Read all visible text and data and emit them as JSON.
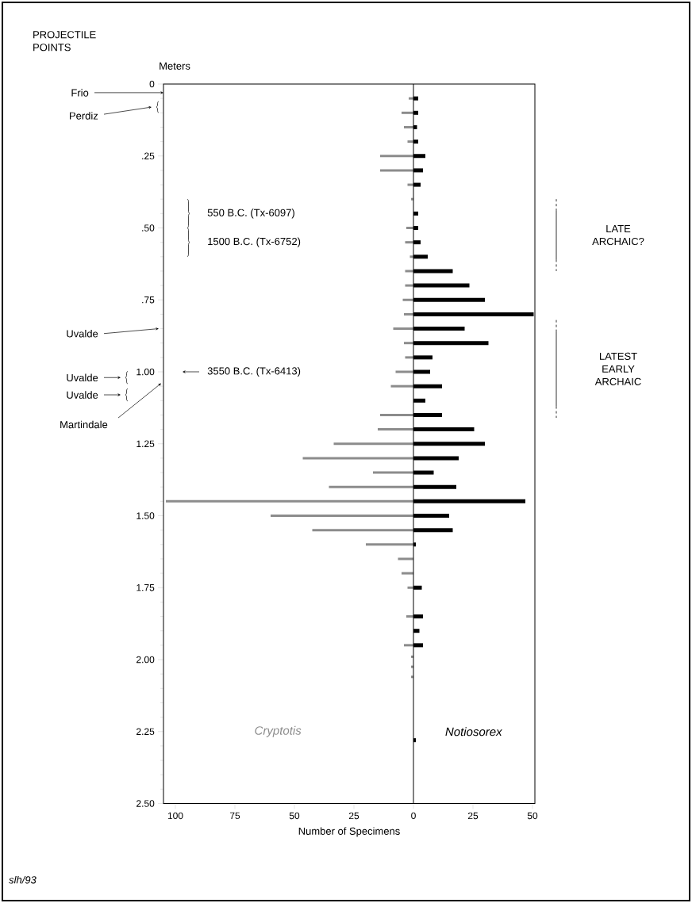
{
  "chart_data": {
    "type": "bar",
    "orientation": "horizontal",
    "stacked": true,
    "xlabel": "Number of Specimens",
    "ylabel": "Meters",
    "xlim": [
      -105,
      51
    ],
    "xticks": [
      {
        "value": -100,
        "label": "100"
      },
      {
        "value": -75,
        "label": "75"
      },
      {
        "value": -50,
        "label": "50"
      },
      {
        "value": -25,
        "label": "25"
      },
      0,
      25,
      50
    ],
    "ylim": [
      2.5,
      0
    ],
    "yticks": [
      0,
      {
        "value": 0.25,
        "label": ".25"
      },
      {
        "value": 0.5,
        "label": ".50"
      },
      {
        "value": 0.75,
        "label": ".75"
      },
      {
        "value": 1.0,
        "label": "1.00"
      },
      1.25,
      {
        "value": 1.5,
        "label": "1.50"
      },
      1.75,
      {
        "value": 2.0,
        "label": "2.00"
      },
      2.25,
      {
        "value": 2.5,
        "label": "2.50"
      }
    ],
    "series": [
      {
        "name": "Cryptotis",
        "color": "#8c8c8c",
        "x": [
          0.05,
          0.1,
          0.15,
          0.2,
          0.25,
          0.3,
          0.35,
          0.4,
          0.5,
          0.55,
          0.6,
          0.65,
          0.7,
          0.75,
          0.8,
          0.85,
          0.9,
          0.95,
          1.0,
          1.05,
          1.15,
          1.2,
          1.25,
          1.3,
          1.35,
          1.4,
          1.45,
          1.5,
          1.55,
          1.6,
          1.65,
          1.7,
          1.75,
          1.85,
          1.95,
          1.99,
          2.025,
          2.06
        ],
        "values": [
          -2,
          -5,
          -4,
          -2.5,
          -14,
          -14,
          -2.5,
          -1,
          -3,
          -3.5,
          -1.5,
          -3.5,
          -3.5,
          -4.5,
          -4,
          -8.5,
          -4,
          -3.5,
          -7.5,
          -9.5,
          -14,
          -15,
          -33.5,
          -46.5,
          -17,
          -35.5,
          -104,
          -60,
          -42.5,
          -20,
          -6.5,
          -5,
          -2.5,
          -3,
          -4,
          -1,
          -1,
          -1
        ]
      },
      {
        "name": "Notiosorex",
        "color": "#000000",
        "x": [
          0.05,
          0.1,
          0.15,
          0.2,
          0.25,
          0.3,
          0.35,
          0.45,
          0.5,
          0.55,
          0.6,
          0.65,
          0.7,
          0.75,
          0.8,
          0.85,
          0.9,
          0.95,
          1.0,
          1.05,
          1.1,
          1.15,
          1.2,
          1.25,
          1.3,
          1.35,
          1.4,
          1.45,
          1.5,
          1.55,
          1.6,
          1.75,
          1.85,
          1.9,
          1.95,
          2.28
        ],
        "values": [
          2,
          2,
          1.5,
          2,
          5,
          4,
          3,
          2,
          2,
          3,
          6,
          16.5,
          23.5,
          30,
          50.5,
          21.5,
          31.5,
          8,
          7,
          12,
          5,
          12,
          25.5,
          30,
          19,
          8.5,
          18,
          47,
          15,
          16.5,
          1,
          3.5,
          4,
          2.5,
          4,
          1
        ]
      }
    ],
    "annotations": [
      "PROJECTILE POINTS",
      "Frio",
      "Perdiz",
      "Uvalde",
      "Uvalde",
      "Uvalde",
      "Martindale",
      "550 B.C. (Tx-6097)",
      "1500 B.C. (Tx-6752)",
      "3550 B.C. (Tx-6413)",
      "LATE ARCHAIC?",
      "LATEST EARLY ARCHAIC",
      "slh/93"
    ]
  }
}
